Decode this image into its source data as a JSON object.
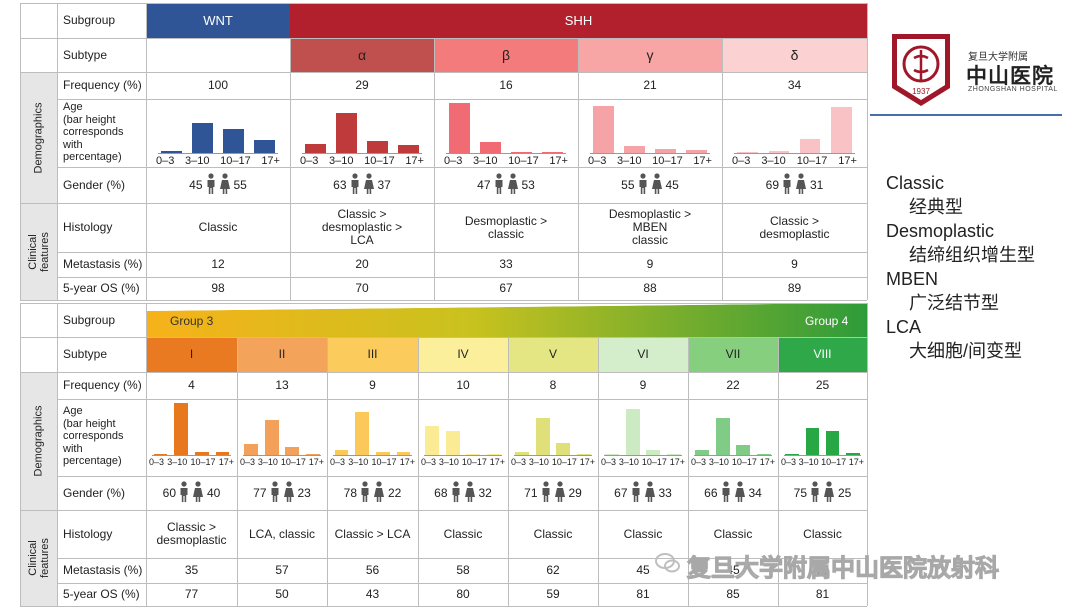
{
  "rows": {
    "subgroup": "Subgroup",
    "subtype": "Subtype",
    "frequency": "Frequency (%)",
    "age": "Age\n(bar height\ncorresponds\nwith\npercentage)",
    "gender": "Gender (%)",
    "histology": "Histology",
    "metastasis": "Metastasis (%)",
    "os": "5-year OS (%)"
  },
  "sections": {
    "demographics": "Demographics",
    "clinical": "Clinical\nfeatures"
  },
  "top": {
    "wnt_label": "WNT",
    "shh_label": "SHH",
    "age_ticks": [
      "0–3",
      "3–10",
      "10–17",
      "17+"
    ],
    "columns": [
      {
        "subtype": "",
        "frequency": "100",
        "age": [
          5,
          60,
          48,
          27
        ],
        "male": "45",
        "female": "55",
        "histology": "Classic",
        "metastasis": "12",
        "os": "98",
        "color": "#2f5597",
        "header_bg": "#ffffff"
      },
      {
        "subtype": "α",
        "frequency": "29",
        "age": [
          18,
          80,
          24,
          16
        ],
        "male": "63",
        "female": "37",
        "histology": "Classic >\ndesmoplastic >\nLCA",
        "metastasis": "20",
        "os": "70",
        "color": "#bf3b3b",
        "header_bg": "#c0504d"
      },
      {
        "subtype": "β",
        "frequency": "16",
        "age": [
          100,
          22,
          2,
          2
        ],
        "male": "47",
        "female": "53",
        "histology": "Desmoplastic >\nclassic",
        "metastasis": "33",
        "os": "67",
        "color": "#f06b74",
        "header_bg": "#f47b7b"
      },
      {
        "subtype": "γ",
        "frequency": "21",
        "age": [
          94,
          14,
          9,
          7
        ],
        "male": "55",
        "female": "45",
        "histology": "Desmoplastic >\nMBEN\nclassic",
        "metastasis": "9",
        "os": "88",
        "color": "#f5a3a6",
        "header_bg": "#f8a5a5"
      },
      {
        "subtype": "δ",
        "frequency": "34",
        "age": [
          0,
          5,
          29,
          92
        ],
        "male": "69",
        "female": "31",
        "histology": "Classic >\ndesmoplastic",
        "metastasis": "9",
        "os": "89",
        "color": "#f9c2c4",
        "header_bg": "#fcd1d1"
      }
    ]
  },
  "bottom": {
    "group3_label": "Group 3",
    "group4_label": "Group 4",
    "age_ticks": [
      "0–3",
      "3–10",
      "10–17",
      "17+"
    ],
    "columns": [
      {
        "subtype": "I",
        "frequency": "4",
        "age": [
          2,
          100,
          5,
          5
        ],
        "male": "60",
        "female": "40",
        "histology": "Classic >\ndesmoplastic",
        "metastasis": "35",
        "os": "77",
        "color": "#e8781e",
        "header_bg": "#e97a22"
      },
      {
        "subtype": "II",
        "frequency": "13",
        "age": [
          22,
          68,
          15,
          2
        ],
        "male": "77",
        "female": "23",
        "histology": "LCA, classic",
        "metastasis": "57",
        "os": "50",
        "color": "#f2a05a",
        "header_bg": "#f4a35a"
      },
      {
        "subtype": "III",
        "frequency": "9",
        "age": [
          10,
          82,
          5,
          5
        ],
        "male": "78",
        "female": "22",
        "histology": "Classic > LCA",
        "metastasis": "56",
        "os": "43",
        "color": "#fac95a",
        "header_bg": "#fbcb5c"
      },
      {
        "subtype": "IV",
        "frequency": "10",
        "age": [
          55,
          47,
          2,
          2
        ],
        "male": "68",
        "female": "32",
        "histology": "Classic",
        "metastasis": "58",
        "os": "80",
        "color": "#fbeb95",
        "header_bg": "#fcef9c"
      },
      {
        "subtype": "V",
        "frequency": "8",
        "age": [
          6,
          72,
          24,
          2
        ],
        "male": "71",
        "female": "29",
        "histology": "Classic",
        "metastasis": "62",
        "os": "59",
        "color": "#dfe07a",
        "header_bg": "#e4e684"
      },
      {
        "subtype": "VI",
        "frequency": "9",
        "age": [
          2,
          88,
          10,
          2
        ],
        "male": "67",
        "female": "33",
        "histology": "Classic",
        "metastasis": "45",
        "os": "81",
        "color": "#cdebc2",
        "header_bg": "#d4edca"
      },
      {
        "subtype": "VII",
        "frequency": "22",
        "age": [
          10,
          72,
          19,
          2
        ],
        "male": "66",
        "female": "34",
        "histology": "Classic",
        "metastasis": "45",
        "os": "85",
        "color": "#80cc86",
        "header_bg": "#86cf7f"
      },
      {
        "subtype": "VIII",
        "frequency": "25",
        "age": [
          2,
          52,
          46,
          3
        ],
        "male": "75",
        "female": "25",
        "histology": "Classic",
        "metastasis": "50",
        "os": "81",
        "color": "#28a745",
        "header_bg": "#2fa84a"
      }
    ]
  },
  "legend": {
    "items": [
      {
        "term": "Classic",
        "cn": "经典型"
      },
      {
        "term": "Desmoplastic",
        "cn": "结缔组织增生型"
      },
      {
        "term": "MBEN",
        "cn": "广泛结节型"
      },
      {
        "term": "LCA",
        "cn": "大细胞/间变型"
      }
    ]
  },
  "logo": {
    "org_small": "复旦大学附属",
    "org_name": "中山医院",
    "org_en": "ZHONGSHAN HOSPITAL",
    "year": "1937"
  },
  "watermark": "复旦大学附属中山医院放射科",
  "colors": {
    "wnt": "#2f5597",
    "shh": "#b21f2d",
    "group3": "#f7b21a",
    "group4": "#2e9b3a",
    "logo": "#a0172a"
  }
}
